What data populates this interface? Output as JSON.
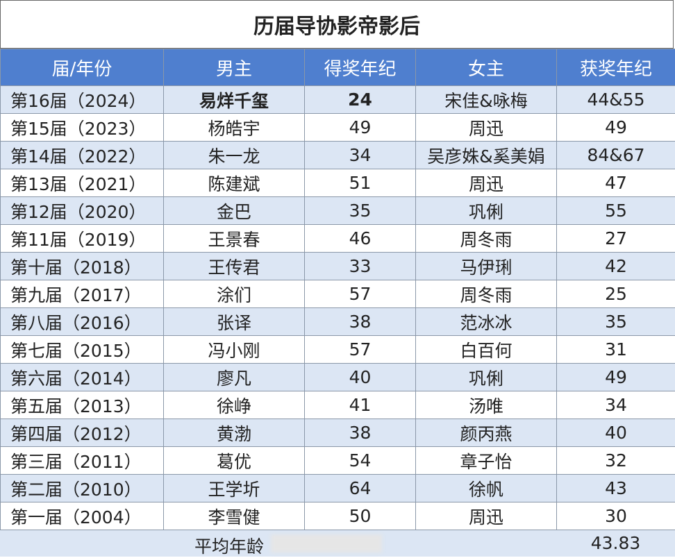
{
  "title": "历届导协影帝影后",
  "table": {
    "headers": [
      "届/年份",
      "男主",
      "得奖年纪",
      "女主",
      "获奖年纪"
    ],
    "rows": [
      [
        "第16届（2024）",
        "易烊千玺",
        "24",
        "宋佳&咏梅",
        "44&55"
      ],
      [
        "第15届（2023）",
        "杨皓宇",
        "49",
        "周迅",
        "49"
      ],
      [
        "第14届（2022）",
        "朱一龙",
        "34",
        "吴彦姝&奚美娟",
        "84&67"
      ],
      [
        "第13届（2021）",
        "陈建斌",
        "51",
        "周迅",
        "47"
      ],
      [
        "第12届（2020）",
        "金巴",
        "35",
        "巩俐",
        "55"
      ],
      [
        "第11届（2019）",
        "王景春",
        "46",
        "周冬雨",
        "27"
      ],
      [
        "第十届（2018）",
        "王传君",
        "33",
        "马伊琍",
        "42"
      ],
      [
        "第九届（2017）",
        "涂们",
        "57",
        "周冬雨",
        "25"
      ],
      [
        "第八届（2016）",
        "张译",
        "38",
        "范冰冰",
        "35"
      ],
      [
        "第七届（2015）",
        "冯小刚",
        "57",
        "白百何",
        "31"
      ],
      [
        "第六届（2014）",
        "廖凡",
        "40",
        "巩俐",
        "49"
      ],
      [
        "第五届（2013）",
        "徐峥",
        "41",
        "汤唯",
        "34"
      ],
      [
        "第四届（2012）",
        "黄渤",
        "38",
        "颜丙燕",
        "40"
      ],
      [
        "第三届（2011）",
        "葛优",
        "54",
        "章子怡",
        "32"
      ],
      [
        "第二届（2010）",
        "王学圻",
        "64",
        "徐帆",
        "43"
      ],
      [
        "第一届（2004）",
        "李雪健",
        "50",
        "周迅",
        "30"
      ]
    ],
    "footer": {
      "label": "平均年龄",
      "value": "43.83"
    }
  }
}
